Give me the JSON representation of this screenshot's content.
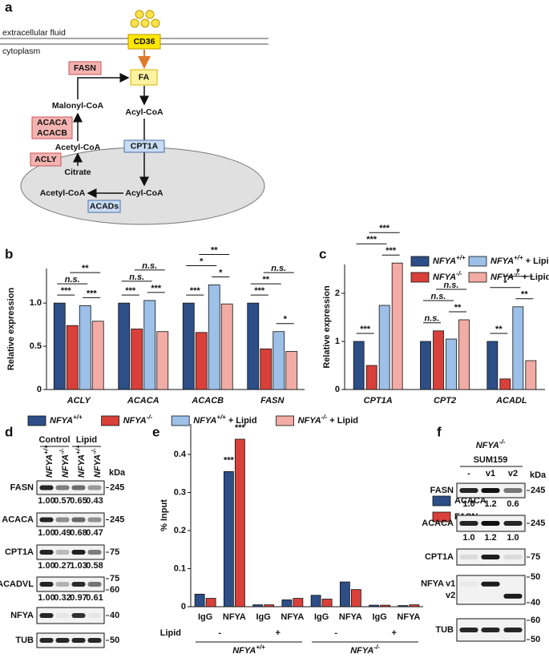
{
  "panel_labels": [
    "a",
    "b",
    "c",
    "d",
    "e",
    "f"
  ],
  "diagram": {
    "outside": "extracellular fluid",
    "inside": "cytoplasm",
    "cd36": "CD36",
    "fa": "FA",
    "fasn": "FASN",
    "malonyl": "Malonyl-CoA",
    "acaca": "ACACA",
    "acacb": "ACACB",
    "acetyl": "Acetyl-CoA",
    "acly": "ACLY",
    "citrate": "Citrate",
    "acyl": "Acyl-CoA",
    "cpt1a": "CPT1A",
    "mito_acetyl": "Acetyl-CoA",
    "mito_acyl": "Acyl-CoA",
    "acads": "ACADs"
  },
  "chart_data": [
    {
      "type": "bar",
      "y_label": "Relative expression",
      "categories": [
        "ACLY",
        "ACACA",
        "ACACB",
        "FASN"
      ],
      "series": [
        {
          "name": "NFYA+/+",
          "color": "#2d4e86",
          "values": [
            1.0,
            1.0,
            1.0,
            1.0
          ]
        },
        {
          "name": "NFYA-/-",
          "color": "#d9403a",
          "values": [
            0.74,
            0.7,
            0.66,
            0.47
          ]
        },
        {
          "name": "NFYA+/+ + Lipid",
          "color": "#9dc0e8",
          "values": [
            0.97,
            1.03,
            1.21,
            0.67
          ]
        },
        {
          "name": "NFYA-/- + Lipid",
          "color": "#f2aba5",
          "values": [
            0.79,
            0.67,
            0.99,
            0.44
          ]
        }
      ],
      "ylim": [
        0,
        1.4
      ],
      "yticks": [
        0,
        0.5,
        {
          "value": 1,
          "label": "1.0"
        }
      ],
      "significance": [
        [
          "***",
          "***",
          "n.s.",
          "**"
        ],
        [
          "***",
          "***",
          "n.s.",
          "n.s."
        ],
        [
          "***",
          "*",
          "*",
          "**"
        ],
        [
          "***",
          "*",
          "**",
          "n.s."
        ]
      ],
      "legend": "bottom"
    },
    {
      "type": "bar",
      "y_label": "Relative expression",
      "categories": [
        "CPT1A",
        "CPT2",
        "ACADL"
      ],
      "series": [
        {
          "name": "NFYA+/+",
          "color": "#2d4e86",
          "values": [
            1.0,
            1.0,
            1.0
          ]
        },
        {
          "name": "NFYA-/-",
          "color": "#d9403a",
          "values": [
            0.5,
            1.22,
            0.22
          ]
        },
        {
          "name": "NFYA+/+ + Lipid",
          "color": "#9dc0e8",
          "values": [
            1.75,
            1.05,
            1.72
          ]
        },
        {
          "name": "NFYA-/- + Lipid",
          "color": "#f2aba5",
          "values": [
            2.63,
            1.45,
            0.6
          ]
        }
      ],
      "ylim": [
        0,
        2.6
      ],
      "yticks": [
        0,
        1,
        2
      ],
      "significance": [
        [
          "***",
          "***",
          "***",
          "***"
        ],
        [
          "n.s.",
          "**",
          "n.s.",
          "n.s."
        ],
        [
          "**",
          "**",
          "*",
          "*"
        ]
      ],
      "legend": "top-right"
    },
    {
      "type": "bar",
      "y_label": "% Input",
      "categories": [
        "IgG",
        "NFYA",
        "IgG",
        "NFYA",
        "IgG",
        "NFYA",
        "IgG",
        "NFYA"
      ],
      "series": [
        {
          "name": "ACACA",
          "color": "#2d4e86",
          "values": [
            0.033,
            0.355,
            0.005,
            0.018,
            0.03,
            0.065,
            0.004,
            0.003
          ],
          "significance": [
            null,
            "***",
            null,
            null,
            null,
            null,
            null,
            null
          ]
        },
        {
          "name": "FASN",
          "color": "#d9403a",
          "values": [
            0.022,
            0.44,
            0.005,
            0.022,
            0.02,
            0.045,
            0.004,
            0.005
          ],
          "significance": [
            null,
            "***",
            null,
            null,
            null,
            null,
            null,
            null
          ]
        }
      ],
      "ylim": [
        0,
        0.48
      ],
      "yticks": [
        0,
        0.1,
        0.2,
        0.3,
        0.4
      ],
      "lipid_label": "Lipid",
      "lipid": [
        "-",
        "+",
        "-",
        "+"
      ],
      "genotypes": [
        "NFYA+/+",
        "NFYA-/-"
      ],
      "legend": "right"
    }
  ],
  "blot_d": {
    "groups": [
      "Control",
      "Lipid"
    ],
    "lanes": [
      "NFYA+/+",
      "NFYA-/-",
      "NFYA+/+",
      "NFYA-/-"
    ],
    "kda": "kDa",
    "rows": [
      {
        "label": "FASN",
        "quant": [
          "1.00",
          "0.57",
          "0.65",
          "0.43"
        ],
        "markers": [
          "245"
        ]
      },
      {
        "label": "ACACA",
        "quant": [
          "1.00",
          "0.49",
          "0.68",
          "0.47"
        ],
        "markers": [
          "245"
        ]
      },
      {
        "label": "CPT1A",
        "quant": [
          "1.00",
          "0.27",
          "1.03",
          "0.58"
        ],
        "markers": [
          "75"
        ]
      },
      {
        "label": "ACADVL",
        "quant": [
          "1.00",
          "0.32",
          "0.97",
          "0.61"
        ],
        "markers": [
          "75",
          "60"
        ]
      },
      {
        "label": "NFYA",
        "markers": [
          "40"
        ]
      },
      {
        "label": "TUB",
        "markers": [
          "50"
        ]
      }
    ]
  },
  "blot_f": {
    "title": "NFYA-/-",
    "cell_line": "SUM159",
    "lanes": [
      "-",
      "v1",
      "v2"
    ],
    "kda": "kDa",
    "rows": [
      {
        "label": "FASN",
        "quant": [
          "1.0",
          "1.2",
          "0.6"
        ],
        "markers": [
          "245"
        ]
      },
      {
        "label": "ACACA",
        "quant": [
          "1.0",
          "1.2",
          "1.0"
        ],
        "markers": [
          "245"
        ]
      },
      {
        "label": "CPT1A",
        "markers": [
          "75"
        ]
      },
      {
        "label": "NFYA",
        "isoforms": [
          "v1",
          "v2"
        ],
        "markers": [
          "50",
          "40"
        ]
      },
      {
        "label": "TUB",
        "markers": [
          "60",
          "50"
        ]
      }
    ]
  }
}
